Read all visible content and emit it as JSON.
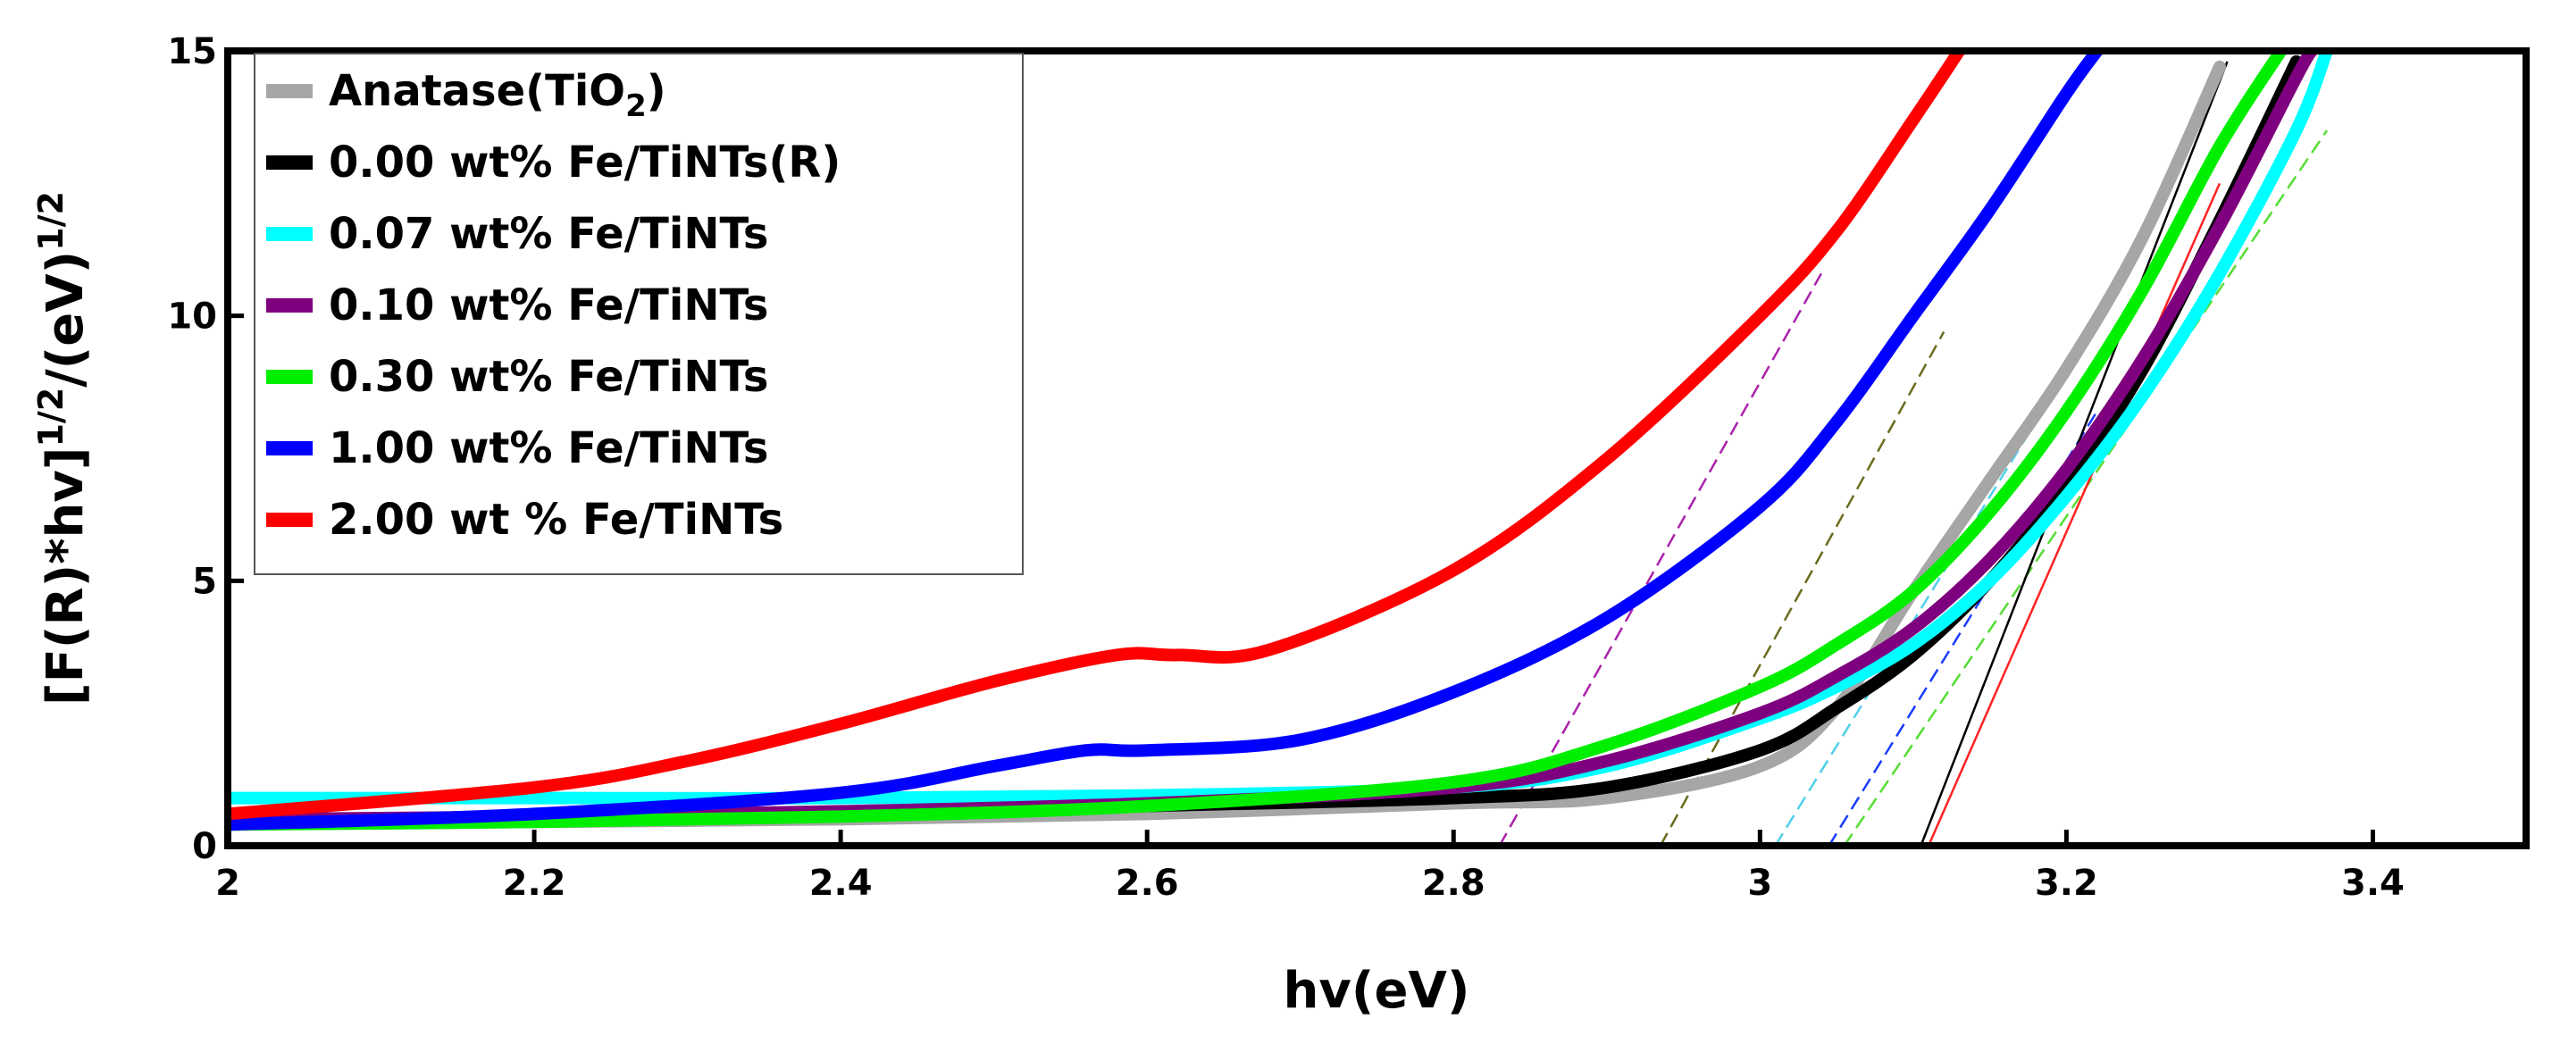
{
  "chart_data": {
    "type": "line",
    "title": "",
    "xlabel": "hv(eV)",
    "ylabel": "[F(R)*hv]",
    "ylabel_sup1": "1/2",
    "ylabel_mid": "/(eV)",
    "ylabel_sup2": "1/2",
    "xlim": [
      2.0,
      3.5
    ],
    "ylim": [
      0,
      15
    ],
    "xticks": [
      2.0,
      2.2,
      2.4,
      2.6,
      2.8,
      3.0,
      3.2,
      3.4
    ],
    "xtick_labels": [
      "2",
      "2.2",
      "2.4",
      "2.6",
      "2.8",
      "3",
      "3.2",
      "3.4"
    ],
    "yticks": [
      0,
      5,
      10,
      15
    ],
    "ytick_labels": [
      "0",
      "5",
      "10",
      "15"
    ],
    "legend_position": "top-left",
    "series": [
      {
        "name": "Anatase(TiO",
        "name_sub": "2",
        "name_suffix": ")",
        "color": "#a6a6a6",
        "x": [
          2.0,
          2.2,
          2.4,
          2.6,
          2.8,
          2.9,
          3.0,
          3.05,
          3.1,
          3.15,
          3.2,
          3.25,
          3.3
        ],
        "y": [
          0.4,
          0.45,
          0.5,
          0.6,
          0.8,
          0.9,
          1.5,
          2.6,
          4.8,
          6.9,
          9.0,
          11.5,
          14.7
        ]
      },
      {
        "name": "0.00 wt% Fe/TiNTs(R)",
        "color": "#000000",
        "x": [
          2.0,
          2.2,
          2.4,
          2.6,
          2.8,
          2.9,
          3.0,
          3.05,
          3.1,
          3.15,
          3.2,
          3.25,
          3.3,
          3.35
        ],
        "y": [
          0.4,
          0.5,
          0.6,
          0.75,
          0.9,
          1.1,
          1.8,
          2.6,
          3.6,
          5.0,
          6.8,
          9.0,
          11.8,
          14.8
        ]
      },
      {
        "name": "0.07 wt% Fe/TiNTs",
        "color": "#00ffff",
        "x": [
          2.0,
          2.2,
          2.4,
          2.6,
          2.8,
          2.9,
          3.0,
          3.05,
          3.1,
          3.15,
          3.2,
          3.25,
          3.3,
          3.35,
          3.37
        ],
        "y": [
          0.9,
          0.9,
          0.9,
          0.95,
          1.1,
          1.5,
          2.4,
          3.0,
          3.8,
          5.0,
          6.6,
          8.5,
          10.8,
          13.5,
          15.0
        ]
      },
      {
        "name": "0.10 wt% Fe/TiNTs",
        "color": "#7f007f",
        "x": [
          2.0,
          2.2,
          2.4,
          2.6,
          2.8,
          2.9,
          3.0,
          3.05,
          3.1,
          3.15,
          3.2,
          3.25,
          3.3,
          3.35,
          3.36
        ],
        "y": [
          0.5,
          0.55,
          0.65,
          0.8,
          1.1,
          1.6,
          2.5,
          3.2,
          4.1,
          5.4,
          7.1,
          9.2,
          11.7,
          14.5,
          15.0
        ]
      },
      {
        "name": "0.30 wt% Fe/TiNTs",
        "color": "#00ee00",
        "x": [
          2.0,
          2.2,
          2.4,
          2.6,
          2.8,
          2.9,
          3.0,
          3.05,
          3.1,
          3.15,
          3.2,
          3.25,
          3.3,
          3.34
        ],
        "y": [
          0.4,
          0.45,
          0.55,
          0.75,
          1.2,
          1.9,
          3.0,
          3.8,
          4.8,
          6.3,
          8.2,
          10.5,
          13.2,
          15.0
        ]
      },
      {
        "name": "1.00 wt% Fe/TiNTs",
        "color": "#0000ff",
        "x": [
          2.0,
          2.2,
          2.4,
          2.5,
          2.56,
          2.6,
          2.7,
          2.8,
          2.9,
          3.0,
          3.05,
          3.1,
          3.15,
          3.2,
          3.22
        ],
        "y": [
          0.4,
          0.6,
          1.0,
          1.5,
          1.8,
          1.8,
          2.0,
          2.9,
          4.3,
          6.4,
          8.0,
          10.0,
          12.0,
          14.2,
          15.0
        ]
      },
      {
        "name": "2.00 wt % Fe/TiNTs",
        "color": "#ff0000",
        "x": [
          2.0,
          2.2,
          2.3,
          2.4,
          2.5,
          2.58,
          2.62,
          2.68,
          2.8,
          2.9,
          3.0,
          3.05,
          3.1,
          3.13
        ],
        "y": [
          0.6,
          1.1,
          1.6,
          2.3,
          3.1,
          3.6,
          3.6,
          3.7,
          5.2,
          7.3,
          10.0,
          11.6,
          13.7,
          15.0
        ]
      }
    ],
    "tangent_lines": [
      {
        "color": "#aa22aa",
        "x": [
          2.83,
          3.04
        ],
        "y": [
          0,
          10.8
        ]
      },
      {
        "color": "#6b6b1e",
        "x": [
          2.935,
          3.12
        ],
        "y": [
          0,
          9.7
        ]
      },
      {
        "color": "#4fd0e8",
        "x": [
          3.01,
          3.18
        ],
        "y": [
          0,
          8.0
        ]
      },
      {
        "color": "#1a3cff",
        "x": [
          3.045,
          3.22
        ],
        "y": [
          0,
          8.2
        ]
      },
      {
        "color": "#55dd33",
        "x": [
          3.055,
          3.37
        ],
        "y": [
          0,
          13.5
        ]
      },
      {
        "color": "#000000",
        "x": [
          3.105,
          3.305
        ],
        "y": [
          0,
          14.8
        ]
      },
      {
        "color": "#ff2222",
        "x": [
          3.11,
          3.3
        ],
        "y": [
          0,
          12.5
        ]
      }
    ]
  }
}
